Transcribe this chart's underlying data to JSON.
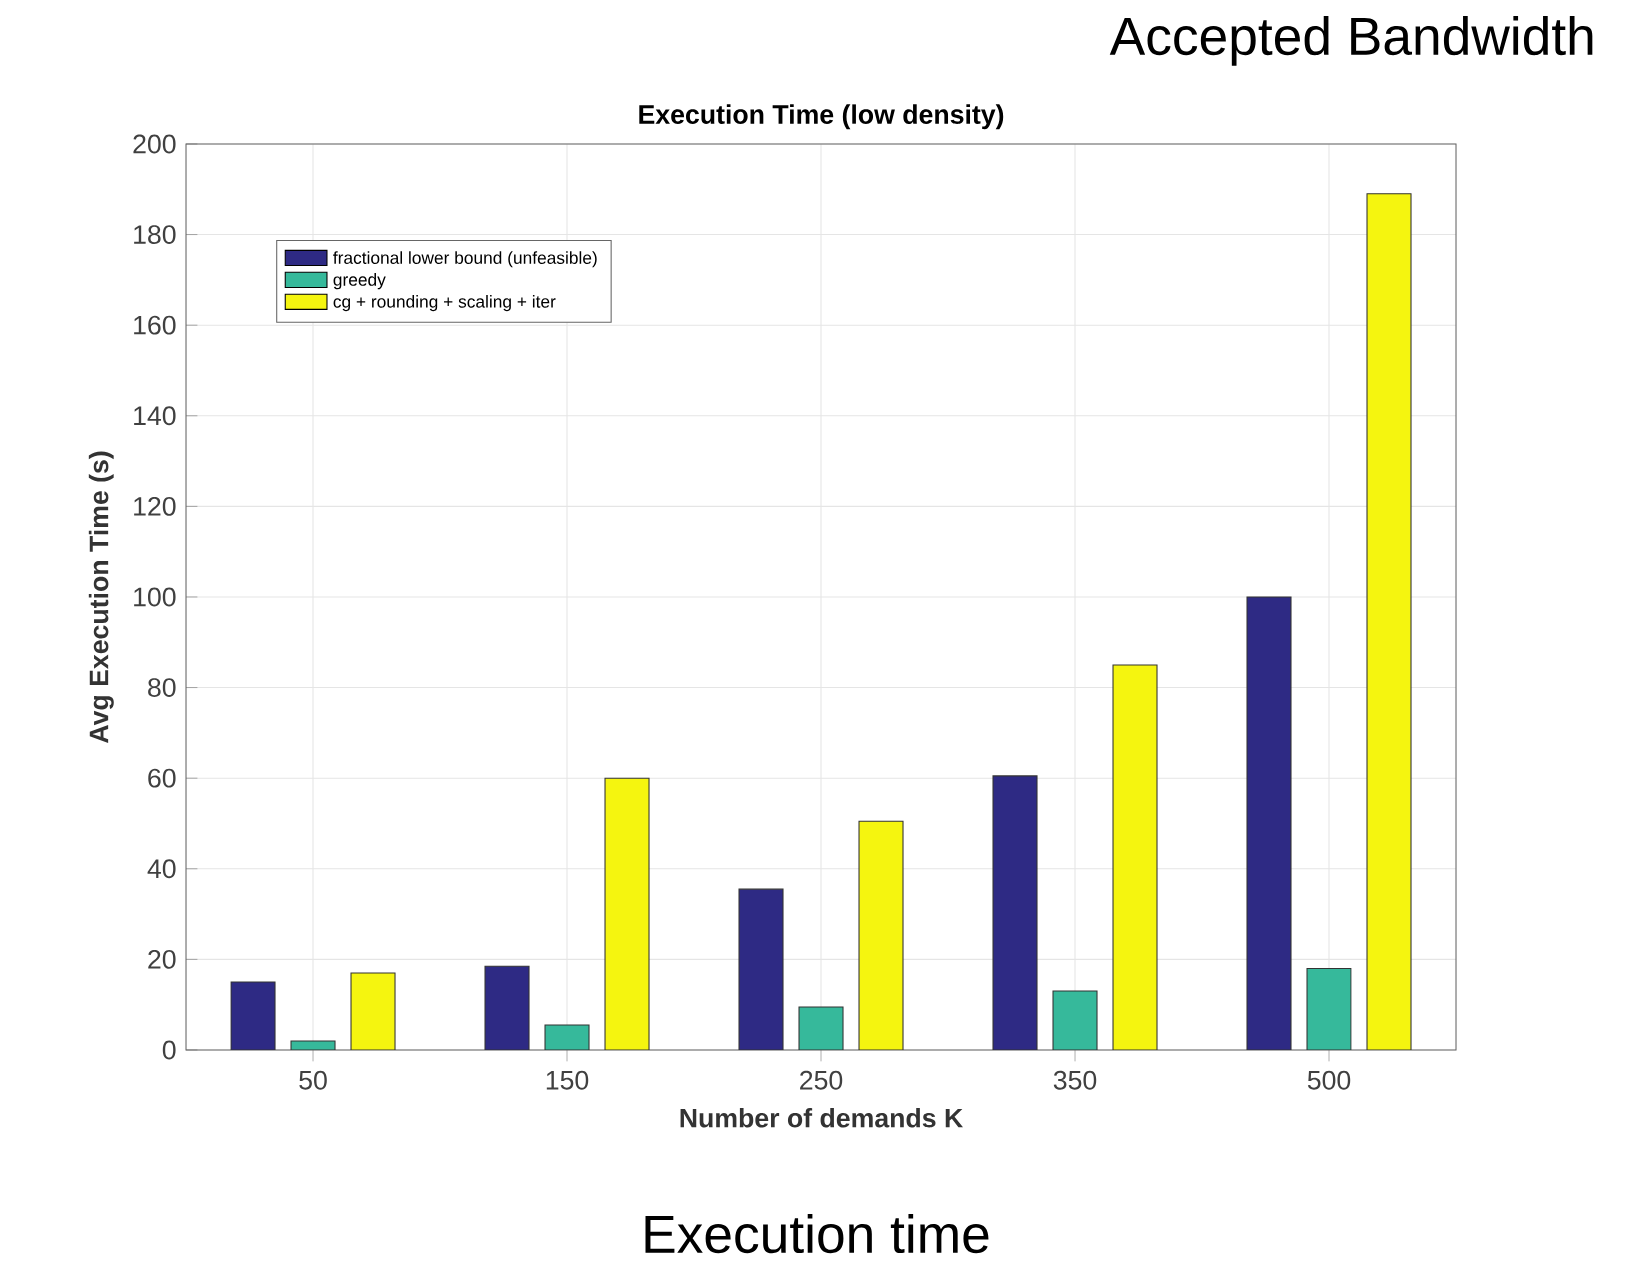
{
  "chart_data": {
    "type": "bar",
    "title": "Execution Time (low density)",
    "xlabel": "Number of demands K",
    "ylabel": "Avg Execution Time (s)",
    "annotations": [
      "Accepted Bandwidth",
      "Execution time"
    ],
    "categories": [
      "50",
      "150",
      "250",
      "350",
      "500"
    ],
    "series": [
      {
        "name": "fractional lower bound (unfeasible)",
        "color": "#2e2a84",
        "values": [
          15,
          18.5,
          35.5,
          60.5,
          100
        ]
      },
      {
        "name": "greedy",
        "color": "#36b99b",
        "values": [
          2,
          5.5,
          9.5,
          13,
          18
        ]
      },
      {
        "name": "cg + rounding + scaling + iter",
        "color": "#f5f50f",
        "values": [
          17,
          60,
          50.5,
          85,
          189
        ]
      }
    ],
    "ylim": [
      0,
      200
    ],
    "yticks": [
      0,
      20,
      40,
      60,
      80,
      100,
      120,
      140,
      160,
      180,
      200
    ],
    "grid": true,
    "legend": "top left"
  }
}
